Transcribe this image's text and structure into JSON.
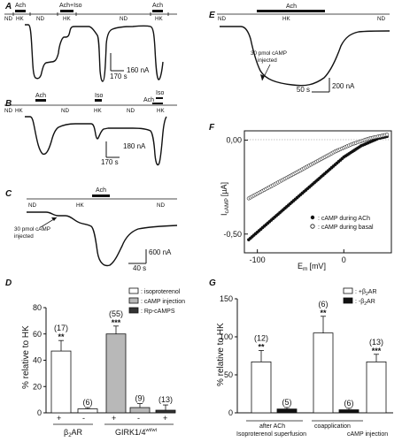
{
  "panel_A": {
    "letter": "A",
    "bars": [
      "Ach",
      "Ach+Iso",
      "Ach"
    ],
    "conditions": [
      "ND",
      "HK",
      "ND",
      "HK",
      "ND",
      "HK"
    ],
    "time_scale": "170 s",
    "current_scale": "160 nA"
  },
  "panel_B": {
    "letter": "B",
    "bars": [
      "Ach",
      "Iso",
      "Iso",
      "Ach"
    ],
    "conditions": [
      "ND",
      "HK",
      "ND",
      "HK",
      "ND",
      "HK"
    ],
    "time_scale": "170 s",
    "current_scale": "180 nA"
  },
  "panel_C": {
    "letter": "C",
    "bars": [
      "Ach"
    ],
    "conditions": [
      "ND",
      "HK",
      "ND"
    ],
    "annotation_line1": "30 pmol cAMP",
    "annotation_line2": "injected",
    "time_scale": "40 s",
    "current_scale": "600 nA"
  },
  "panel_E": {
    "letter": "E",
    "bars": [
      "Ach"
    ],
    "conditions": [
      "ND",
      "HK",
      "ND"
    ],
    "annotation_line1": "30 pmol cAMP",
    "annotation_line2": "injected",
    "time_scale": "50 s",
    "current_scale": "200 nA"
  },
  "panel_F": {
    "letter": "F",
    "ylabel": "I",
    "ylabel_sub": "cAMP",
    "ylabel_unit": "[µA]",
    "xlabel": "E",
    "xlabel_sub": "m",
    "xlabel_unit": "[mV]",
    "legend": [
      ": cAMP during ACh",
      ": cAMP during basal"
    ]
  },
  "panel_D": {
    "letter": "D",
    "ylabel": "% relative to HK",
    "legend": [
      ": isoproterenol",
      ": cAMP injection",
      ": Rp-cAMPS"
    ],
    "signs": [
      "+",
      "-",
      "+",
      "-",
      "+"
    ],
    "groups": [
      "β",
      "GIRK1/4"
    ],
    "group_sub": [
      "2",
      "wt/wt"
    ],
    "group_tail": [
      "AR",
      ""
    ]
  },
  "panel_G": {
    "letter": "G",
    "ylabel": "% relative to HK",
    "legend": [
      ": +β",
      ": -β"
    ],
    "legend_sub": [
      "2",
      "2"
    ],
    "legend_tail": [
      "AR",
      "AR"
    ],
    "groups_line1": [
      "after ACh",
      "coapplication",
      ""
    ],
    "groups_line2": [
      "Isoproterenol superfusion",
      "",
      "cAMP injection"
    ]
  },
  "chart_data": [
    {
      "type": "line",
      "title": "F",
      "xlabel": "Em [mV]",
      "ylabel": "IcAMP [µA]",
      "xlim": [
        -115,
        55
      ],
      "ylim": [
        -0.6,
        0.05
      ],
      "x_ticks": [
        -100,
        0
      ],
      "y_ticks": [
        0.0,
        -0.5
      ],
      "y_tick_labels": [
        "0,00",
        "-0,50"
      ],
      "series": [
        {
          "name": "cAMP during ACh",
          "marker": "filled",
          "x": [
            -110,
            -100,
            -90,
            -80,
            -70,
            -60,
            -50,
            -40,
            -30,
            -20,
            -10,
            0,
            10,
            20,
            30,
            40,
            50
          ],
          "y": [
            -0.53,
            -0.49,
            -0.45,
            -0.41,
            -0.37,
            -0.33,
            -0.29,
            -0.25,
            -0.21,
            -0.17,
            -0.13,
            -0.09,
            -0.06,
            -0.03,
            -0.01,
            0.01,
            0.02
          ]
        },
        {
          "name": "cAMP during basal",
          "marker": "open",
          "x": [
            -110,
            -100,
            -90,
            -80,
            -70,
            -60,
            -50,
            -40,
            -30,
            -20,
            -10,
            0,
            10,
            20,
            30,
            40,
            50
          ],
          "y": [
            -0.31,
            -0.285,
            -0.26,
            -0.235,
            -0.21,
            -0.185,
            -0.16,
            -0.135,
            -0.11,
            -0.085,
            -0.06,
            -0.04,
            -0.02,
            -0.005,
            0.01,
            0.02,
            0.03
          ]
        }
      ]
    },
    {
      "type": "bar",
      "title": "D",
      "ylabel": "% relative to HK",
      "ylim": [
        0,
        80
      ],
      "y_ticks": [
        0,
        20,
        40,
        60,
        80
      ],
      "bars": [
        {
          "group": "β2AR",
          "sign": "+",
          "style": "isoproterenol",
          "value": 47,
          "err": 8,
          "n": "(17)",
          "sig": "**"
        },
        {
          "group": "β2AR",
          "sign": "-",
          "style": "isoproterenol",
          "value": 3,
          "err": 1,
          "n": "(6)",
          "sig": ""
        },
        {
          "group": "GIRK1/4wt/wt",
          "sign": "+",
          "style": "cAMP injection",
          "value": 60,
          "err": 6,
          "n": "(55)",
          "sig": "***"
        },
        {
          "group": "GIRK1/4wt/wt",
          "sign": "-",
          "style": "cAMP injection",
          "value": 4,
          "err": 3,
          "n": "(9)",
          "sig": ""
        },
        {
          "group": "GIRK1/4wt/wt",
          "sign": "+",
          "style": "Rp-cAMPS",
          "value": 2,
          "err": 4,
          "n": "(13)",
          "sig": ""
        }
      ]
    },
    {
      "type": "bar",
      "title": "G",
      "ylabel": "% relative to HK",
      "ylim": [
        0,
        150
      ],
      "y_ticks": [
        0,
        50,
        100,
        150
      ],
      "bars": [
        {
          "group": "after ACh Isoproterenol superfusion",
          "style": "+β2AR",
          "value": 67,
          "err": 15,
          "n": "(12)",
          "sig": "**"
        },
        {
          "group": "after ACh Isoproterenol superfusion",
          "style": "-β2AR",
          "value": 5,
          "err": 2,
          "n": "(5)",
          "sig": ""
        },
        {
          "group": "coapplication",
          "style": "+β2AR",
          "value": 105,
          "err": 22,
          "n": "(6)",
          "sig": "**"
        },
        {
          "group": "coapplication",
          "style": "-β2AR",
          "value": 4,
          "err": 2,
          "n": "(6)",
          "sig": ""
        },
        {
          "group": "cAMP injection",
          "style": "+β2AR",
          "value": 67,
          "err": 10,
          "n": "(13)",
          "sig": "***"
        }
      ]
    }
  ]
}
